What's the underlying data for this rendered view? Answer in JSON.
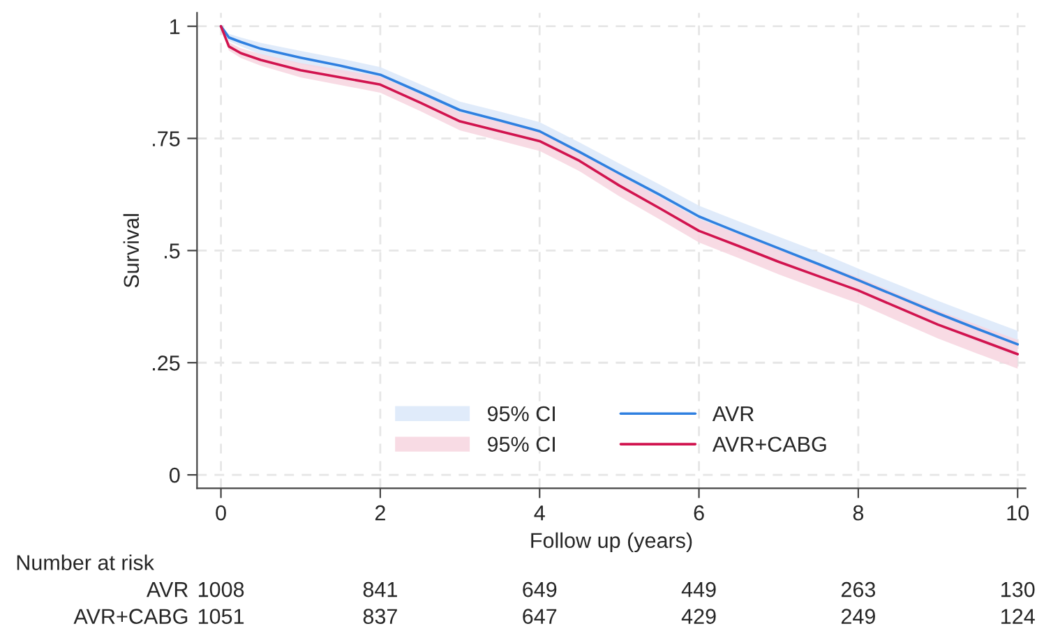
{
  "chart_data": {
    "type": "line",
    "xlabel": "Follow up (years)",
    "ylabel": "Survival",
    "x": [
      0,
      0.1,
      0.25,
      0.5,
      1,
      1.5,
      2,
      2.5,
      3,
      3.5,
      4,
      4.5,
      5,
      5.5,
      6,
      6.5,
      7,
      7.5,
      8,
      8.5,
      9,
      9.5,
      10
    ],
    "series": [
      {
        "name": "AVR",
        "color": "#2f80e0",
        "values": [
          1,
          0.975,
          0.965,
          0.95,
          0.93,
          0.912,
          0.892,
          0.853,
          0.813,
          0.79,
          0.766,
          0.72,
          0.672,
          0.625,
          0.576,
          0.54,
          0.505,
          0.47,
          0.434,
          0.397,
          0.36,
          0.325,
          0.291
        ],
        "upper": [
          1,
          0.983,
          0.975,
          0.963,
          0.945,
          0.928,
          0.909,
          0.871,
          0.832,
          0.81,
          0.786,
          0.741,
          0.694,
          0.648,
          0.6,
          0.565,
          0.531,
          0.497,
          0.46,
          0.424,
          0.388,
          0.354,
          0.321
        ],
        "lower": [
          1,
          0.967,
          0.955,
          0.937,
          0.915,
          0.896,
          0.875,
          0.835,
          0.794,
          0.77,
          0.746,
          0.699,
          0.65,
          0.602,
          0.552,
          0.515,
          0.479,
          0.443,
          0.408,
          0.37,
          0.332,
          0.296,
          0.261
        ]
      },
      {
        "name": "AVR+CABG",
        "color": "#d1144f",
        "values": [
          1,
          0.955,
          0.94,
          0.925,
          0.902,
          0.886,
          0.87,
          0.83,
          0.788,
          0.766,
          0.744,
          0.7,
          0.645,
          0.595,
          0.544,
          0.51,
          0.475,
          0.443,
          0.411,
          0.373,
          0.335,
          0.302,
          0.269
        ],
        "upper": [
          1,
          0.964,
          0.951,
          0.938,
          0.918,
          0.903,
          0.888,
          0.849,
          0.808,
          0.787,
          0.766,
          0.723,
          0.669,
          0.62,
          0.57,
          0.537,
          0.503,
          0.472,
          0.44,
          0.403,
          0.366,
          0.334,
          0.301
        ],
        "lower": [
          1,
          0.946,
          0.929,
          0.912,
          0.886,
          0.869,
          0.852,
          0.811,
          0.768,
          0.745,
          0.722,
          0.677,
          0.621,
          0.57,
          0.518,
          0.483,
          0.447,
          0.414,
          0.382,
          0.343,
          0.304,
          0.27,
          0.237
        ]
      }
    ],
    "xlim": [
      -0.3,
      10.1
    ],
    "xticks": [
      0,
      2,
      4,
      6,
      8,
      10
    ],
    "ylim": [
      -0.03,
      1.03
    ],
    "yticks": [
      0,
      {
        "value": 0.25,
        "label": ".25"
      },
      {
        "value": 0.5,
        "label": ".5"
      },
      {
        "value": 0.75,
        "label": ".75"
      },
      1
    ],
    "grid": true,
    "legend": "bottom",
    "annotations": [
      "95% CI",
      "95% CI",
      "Number at risk",
      "AVR",
      "1008",
      "841",
      "649",
      "449",
      "263",
      "130",
      "AVR+CABG",
      "1051",
      "837",
      "647",
      "429",
      "249",
      "124"
    ]
  }
}
